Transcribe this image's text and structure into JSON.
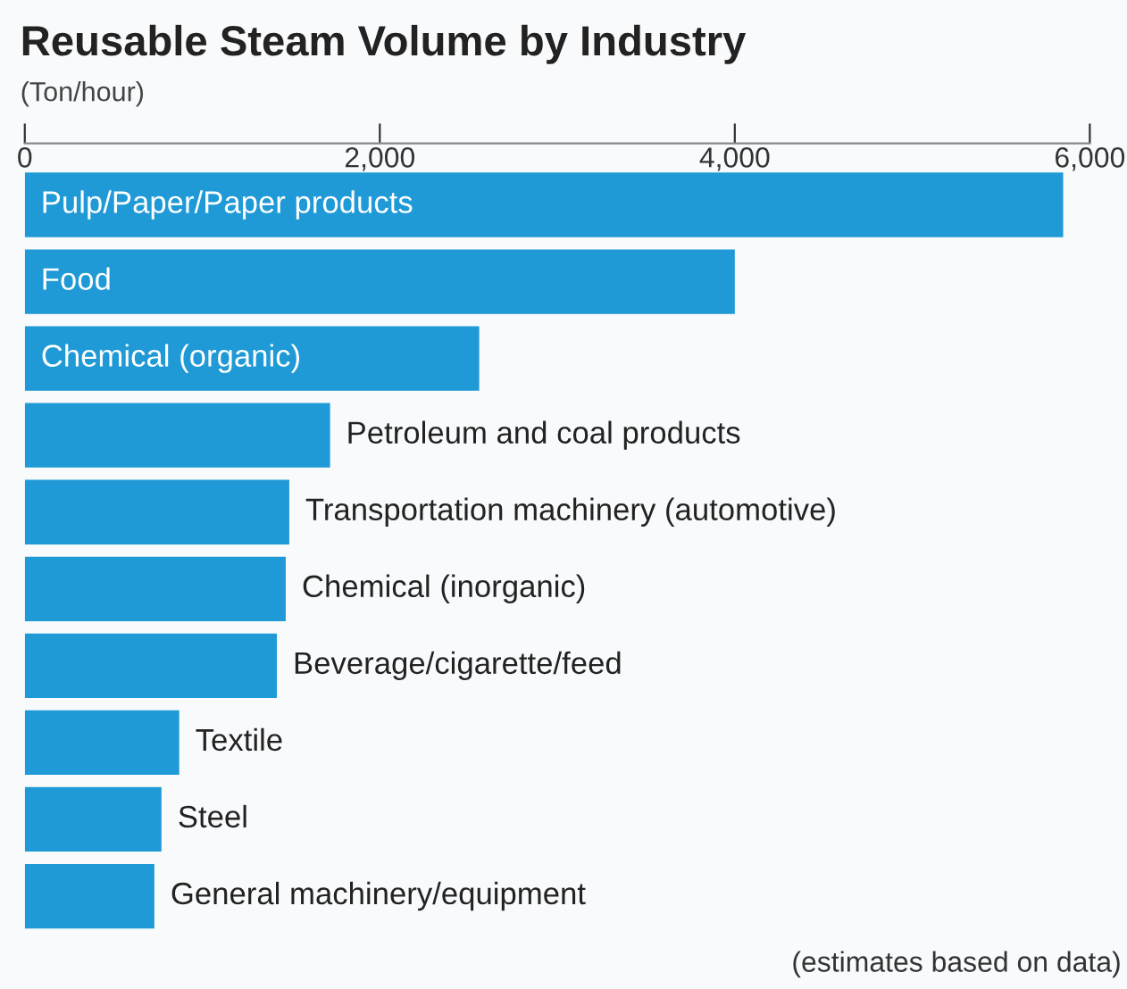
{
  "chart_data": {
    "type": "bar",
    "orientation": "horizontal",
    "title": "Reusable Steam Volume by Industry",
    "subtitle": "(Ton/hour)",
    "categories": [
      "Pulp/Paper/Paper products",
      "Food",
      "Chemical (organic)",
      "Petroleum and coal products",
      "Transportation machinery (automotive)",
      "Chemical (inorganic)",
      "Beverage/cigarette/feed",
      "Textile",
      "Steel",
      "General machinery/equipment"
    ],
    "values": [
      5850,
      4000,
      2560,
      1720,
      1490,
      1470,
      1420,
      870,
      770,
      730
    ],
    "color": "#1f9ad6",
    "xlim": [
      0,
      6000
    ],
    "xticks": [
      {
        "value": 0,
        "label": "0"
      },
      {
        "value": 2000,
        "label": "2,000"
      },
      {
        "value": 4000,
        "label": "4,000"
      },
      {
        "value": 6000,
        "label": "6,000"
      }
    ],
    "grid": false,
    "legend": false,
    "annotations": [
      "(estimates based on data)"
    ]
  }
}
